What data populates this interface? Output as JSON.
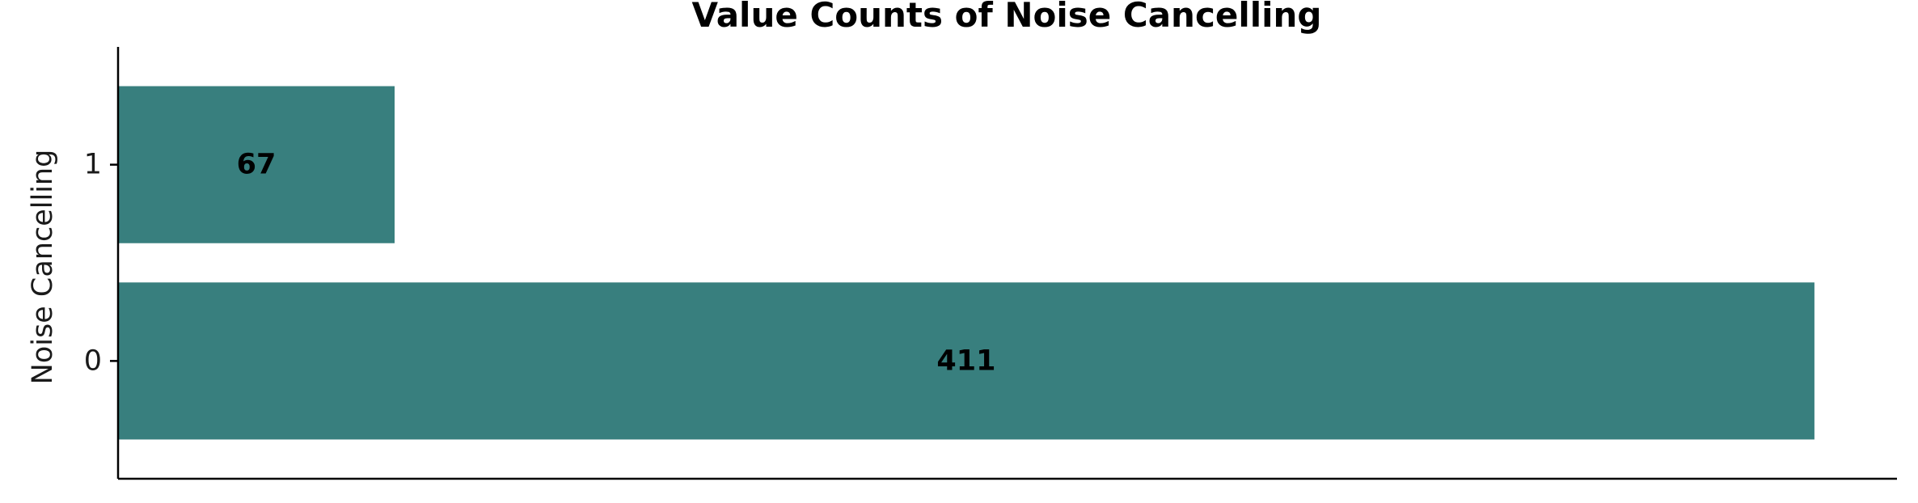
{
  "chart_data": {
    "type": "bar",
    "orientation": "horizontal",
    "title": "Value Counts of Noise Cancelling",
    "xlabel": "",
    "ylabel": "Noise Cancelling",
    "categories": [
      "0",
      "1"
    ],
    "values": [
      411,
      67
    ],
    "data_labels": [
      "411",
      "67"
    ],
    "xlim": [
      0,
      431
    ],
    "bar_color": "#387f7e",
    "grid": false,
    "legend": "none"
  }
}
